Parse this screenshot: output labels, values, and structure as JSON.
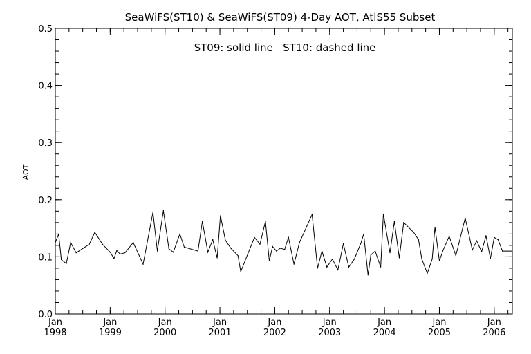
{
  "chart_data": {
    "type": "line",
    "title": "SeaWiFS(ST10) & SeaWiFS(ST09) 4-Day AOT, AtlS55 Subset",
    "annotation": "ST09: solid line   ST10: dashed line",
    "ylabel": "AOT",
    "xlabel": "",
    "ylim": [
      0.0,
      0.5
    ],
    "xlim": [
      1998.0,
      2006.33
    ],
    "y_ticks": [
      {
        "value": 0.0,
        "label": "0.0"
      },
      {
        "value": 0.1,
        "label": "0.1"
      },
      {
        "value": 0.2,
        "label": "0.2"
      },
      {
        "value": 0.3,
        "label": "0.3"
      },
      {
        "value": 0.4,
        "label": "0.4"
      },
      {
        "value": 0.5,
        "label": "0.5"
      }
    ],
    "x_ticks": [
      {
        "value": 1998,
        "month": "Jan",
        "year": "1998"
      },
      {
        "value": 1999,
        "month": "Jan",
        "year": "1999"
      },
      {
        "value": 2000,
        "month": "Jan",
        "year": "2000"
      },
      {
        "value": 2001,
        "month": "Jan",
        "year": "2001"
      },
      {
        "value": 2002,
        "month": "Jan",
        "year": "2002"
      },
      {
        "value": 2003,
        "month": "Jan",
        "year": "2003"
      },
      {
        "value": 2004,
        "month": "Jan",
        "year": "2004"
      },
      {
        "value": 2005,
        "month": "Jan",
        "year": "2005"
      },
      {
        "value": 2006,
        "month": "Jan",
        "year": "2006"
      }
    ],
    "grid": false,
    "series": [
      {
        "style": "solid",
        "color": "#000000",
        "x": [
          1998.0,
          1998.06,
          1998.11,
          1998.2,
          1998.28,
          1998.38,
          1998.62,
          1998.72,
          1998.86,
          1998.92,
          1999.0,
          1999.07,
          1999.12,
          1999.18,
          1999.27,
          1999.42,
          1999.6,
          1999.78,
          1999.86,
          1999.97,
          2000.07,
          2000.15,
          2000.27,
          2000.35,
          2000.6,
          2000.68,
          2000.78,
          2000.87,
          2000.95,
          2001.01,
          2001.1,
          2001.2,
          2001.33,
          2001.38,
          2001.63,
          2001.73,
          2001.83,
          2001.9,
          2001.96,
          2002.03,
          2002.1,
          2002.18,
          2002.25,
          2002.35,
          2002.45,
          2002.68,
          2002.78,
          2002.86,
          2002.95,
          2003.05,
          2003.15,
          2003.25,
          2003.35,
          2003.45,
          2003.57,
          2003.62,
          2003.7,
          2003.75,
          2003.83,
          2003.93,
          2003.98,
          2004.1,
          2004.18,
          2004.27,
          2004.35,
          2004.53,
          2004.62,
          2004.68,
          2004.78,
          2004.87,
          2004.92,
          2005.0,
          2005.07,
          2005.18,
          2005.3,
          2005.47,
          2005.6,
          2005.68,
          2005.77,
          2005.85,
          2005.93,
          2006.0,
          2006.07,
          2006.15,
          2006.23,
          2006.33
        ],
        "values": [
          0.125,
          0.14,
          0.095,
          0.088,
          0.125,
          0.107,
          0.122,
          0.143,
          0.122,
          0.116,
          0.108,
          0.097,
          0.111,
          0.105,
          0.107,
          0.125,
          0.087,
          0.178,
          0.11,
          0.181,
          0.114,
          0.108,
          0.14,
          0.117,
          0.11,
          0.162,
          0.108,
          0.13,
          0.098,
          0.172,
          0.129,
          0.115,
          0.102,
          0.074,
          0.134,
          0.122,
          0.162,
          0.093,
          0.118,
          0.11,
          0.115,
          0.113,
          0.134,
          0.087,
          0.125,
          0.174,
          0.08,
          0.11,
          0.082,
          0.096,
          0.077,
          0.123,
          0.082,
          0.096,
          0.124,
          0.14,
          0.068,
          0.103,
          0.11,
          0.082,
          0.175,
          0.107,
          0.162,
          0.098,
          0.16,
          0.143,
          0.13,
          0.096,
          0.071,
          0.096,
          0.152,
          0.093,
          0.112,
          0.136,
          0.102,
          0.168,
          0.112,
          0.128,
          0.109,
          0.137,
          0.097,
          0.134,
          0.13,
          0.11,
          0.11,
          0.11
        ]
      }
    ]
  }
}
